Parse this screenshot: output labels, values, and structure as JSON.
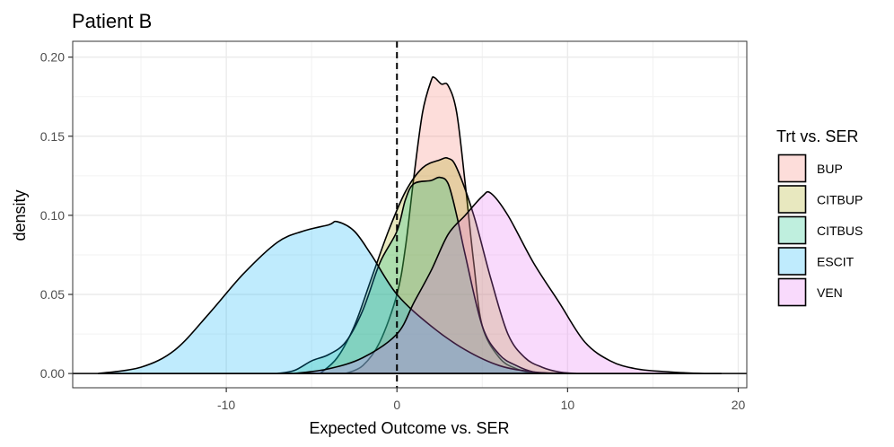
{
  "chart_data": {
    "type": "area",
    "subtype": "density",
    "title": "Patient B",
    "xlabel": "Expected Outcome vs. SER",
    "ylabel": "density",
    "xlim": [
      -19,
      20.5
    ],
    "ylim": [
      -0.009,
      0.21
    ],
    "x_ticks": [
      -10,
      0,
      10,
      20
    ],
    "y_ticks": [
      0.0,
      0.05,
      0.1,
      0.15,
      0.2
    ],
    "x_tick_labels": [
      "-10",
      "0",
      "10",
      "20"
    ],
    "y_tick_labels": [
      "0.00",
      "0.05",
      "0.10",
      "0.15",
      "0.20"
    ],
    "vline": {
      "x": 0,
      "style": "dashed"
    },
    "legend": {
      "title": "Trt vs. SER",
      "position": "right"
    },
    "series": [
      {
        "name": "BUP",
        "color": "#F8766D",
        "x": [
          -3,
          -2,
          -1,
          0,
          0.5,
          1,
          1.5,
          2,
          2.2,
          2.6,
          3,
          3.5,
          4,
          4.5,
          5,
          6,
          7,
          8
        ],
        "y": [
          0,
          0.005,
          0.02,
          0.05,
          0.08,
          0.125,
          0.165,
          0.185,
          0.187,
          0.183,
          0.182,
          0.165,
          0.12,
          0.07,
          0.03,
          0.01,
          0.003,
          0
        ]
      },
      {
        "name": "CITBUP",
        "color": "#A3A500",
        "x": [
          -4.5,
          -3.5,
          -2.5,
          -1.5,
          -0.5,
          0.5,
          1.5,
          2.5,
          3,
          3.5,
          4.5,
          5.5,
          6.5,
          7.5,
          8.5,
          9.5,
          10.5
        ],
        "y": [
          0,
          0.01,
          0.03,
          0.06,
          0.09,
          0.115,
          0.13,
          0.135,
          0.136,
          0.13,
          0.1,
          0.06,
          0.025,
          0.01,
          0.004,
          0.001,
          0
        ]
      },
      {
        "name": "CITBUS",
        "color": "#00BF7D",
        "x": [
          -7,
          -6,
          -5,
          -4,
          -3,
          -2,
          -1,
          0,
          0.5,
          1,
          2,
          2.5,
          3,
          3.5,
          4,
          5,
          6,
          7,
          8,
          9
        ],
        "y": [
          0,
          0.002,
          0.008,
          0.012,
          0.02,
          0.04,
          0.07,
          0.09,
          0.11,
          0.12,
          0.122,
          0.124,
          0.12,
          0.1,
          0.075,
          0.03,
          0.012,
          0.005,
          0.001,
          0
        ]
      },
      {
        "name": "ESCIT",
        "color": "#00B0F6",
        "x": [
          -17.5,
          -15,
          -13,
          -11,
          -9,
          -7,
          -5.5,
          -4,
          -3.5,
          -2.5,
          -1.5,
          0,
          2,
          4,
          6,
          8,
          10
        ],
        "y": [
          0,
          0.004,
          0.015,
          0.038,
          0.063,
          0.083,
          0.09,
          0.094,
          0.096,
          0.09,
          0.075,
          0.05,
          0.03,
          0.015,
          0.005,
          0.001,
          0
        ]
      },
      {
        "name": "VEN",
        "color": "#E76BF3",
        "x": [
          -6,
          -4,
          -2,
          0,
          1,
          2,
          3,
          4,
          5,
          5.5,
          6.5,
          8,
          9.5,
          11,
          12.5,
          14,
          16,
          18,
          19
        ],
        "y": [
          0,
          0.003,
          0.01,
          0.025,
          0.045,
          0.065,
          0.088,
          0.1,
          0.112,
          0.114,
          0.1,
          0.07,
          0.045,
          0.02,
          0.008,
          0.003,
          0.001,
          0,
          0
        ]
      }
    ]
  }
}
